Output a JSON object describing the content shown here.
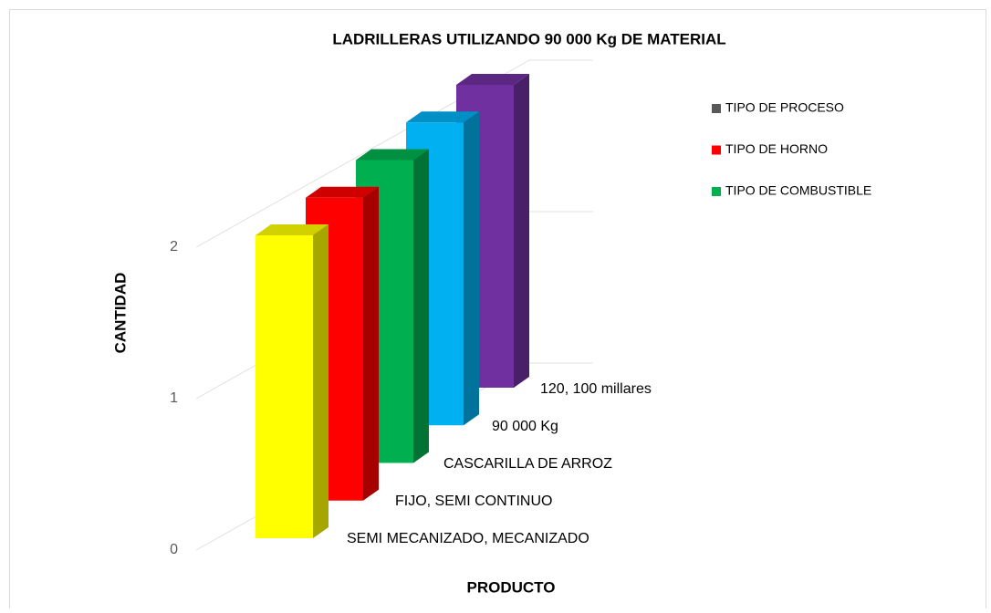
{
  "chart_data": {
    "type": "bar3d",
    "title": "LADRILLERAS UTILIZANDO 90 000 Kg DE MATERIAL",
    "x_label": "PRODUCTO",
    "y_label": "CANTIDAD",
    "categories": [
      "SEMI MECANIZADO, MECANIZADO",
      "FIJO, SEMI CONTINUO",
      "CASCARILLA DE ARROZ",
      "90 000 Kg",
      "120, 100 millares"
    ],
    "values": [
      2,
      2,
      2,
      2,
      2
    ],
    "colors": [
      "#ffff00",
      "#ff0000",
      "#00b050",
      "#00b0f0",
      "#7030a0"
    ],
    "legend": [
      {
        "name": "TIPO DE PROCESO",
        "color": "#595959"
      },
      {
        "name": "TIPO DE HORNO",
        "color": "#ff0000"
      },
      {
        "name": "TIPO DE COMBUSTIBLE",
        "color": "#00b050"
      }
    ],
    "ylim": [
      0,
      2
    ],
    "yticks": [
      0,
      1,
      2
    ],
    "grid": true
  }
}
